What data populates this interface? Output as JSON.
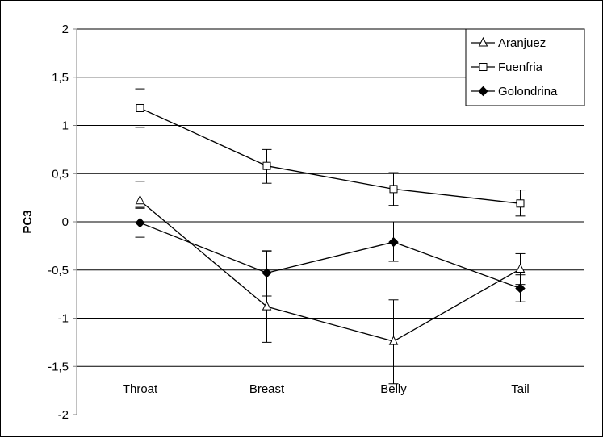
{
  "chart_data": {
    "type": "line",
    "title": "",
    "xlabel": "",
    "ylabel": "PC3",
    "categories": [
      "Throat",
      "Breast",
      "Belly",
      "Tail"
    ],
    "yticks": [
      "2",
      "1,5",
      "1",
      "0,5",
      "0",
      "-0,5",
      "-1",
      "-1,5",
      "-2"
    ],
    "ylim": [
      -2,
      2
    ],
    "grid": true,
    "legend_position": "top-right",
    "series": [
      {
        "name": "Aranjuez",
        "marker": "triangle-open",
        "color": "#000000",
        "values": [
          0.22,
          -0.88,
          -1.24,
          -0.49
        ],
        "err_low": [
          0.15,
          -1.25,
          -1.68,
          -0.65
        ],
        "err_high": [
          0.42,
          -0.31,
          -0.81,
          -0.33
        ]
      },
      {
        "name": "Fuenfria",
        "marker": "square-open",
        "color": "#000000",
        "values": [
          1.18,
          0.58,
          0.34,
          0.19
        ],
        "err_low": [
          0.98,
          0.4,
          0.17,
          0.06
        ],
        "err_high": [
          1.38,
          0.75,
          0.51,
          0.33
        ]
      },
      {
        "name": "Golondrina",
        "marker": "diamond-filled",
        "color": "#000000",
        "values": [
          -0.01,
          -0.53,
          -0.21,
          -0.69
        ],
        "err_low": [
          -0.16,
          -0.77,
          -0.41,
          -0.83
        ],
        "err_high": [
          0.14,
          -0.3,
          0.0,
          -0.55
        ]
      }
    ]
  }
}
